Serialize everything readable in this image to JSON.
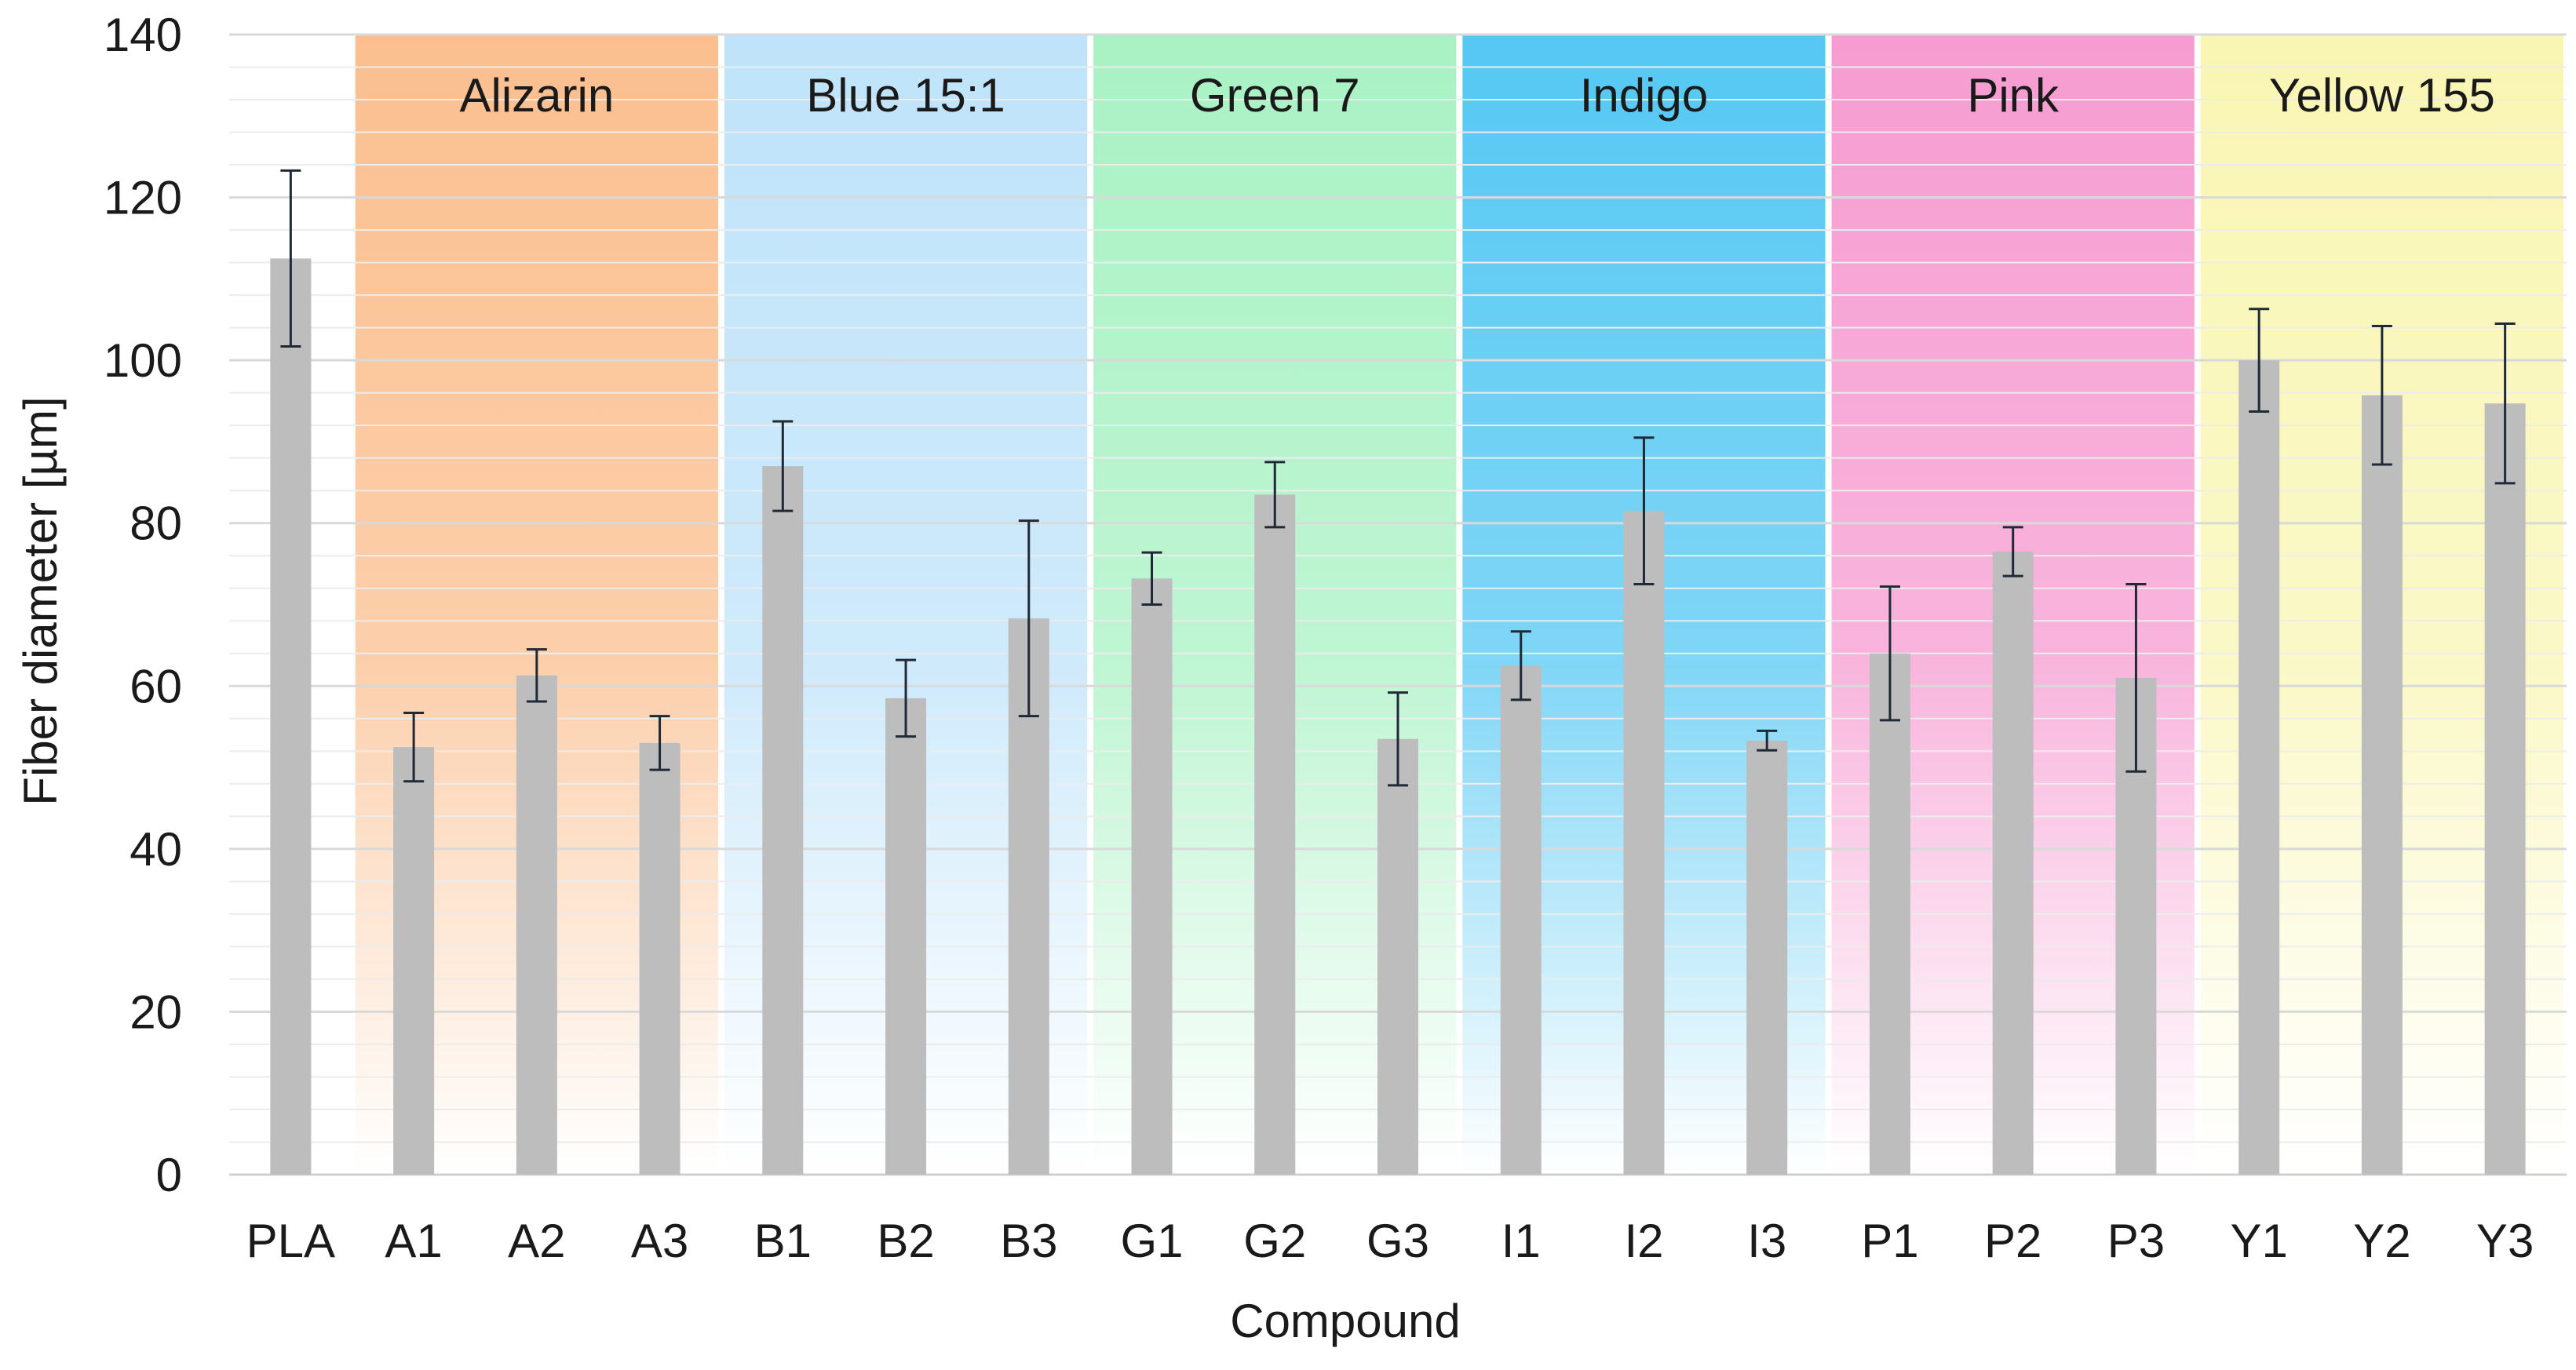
{
  "chart_data": {
    "type": "bar",
    "title": "",
    "xlabel": "Compound",
    "ylabel": "Fiber diameter [µm]",
    "ylim": [
      0,
      140
    ],
    "yticks": [
      0,
      20,
      40,
      60,
      80,
      100,
      120,
      140
    ],
    "grid": true,
    "categories": [
      "PLA",
      "A1",
      "A2",
      "A3",
      "B1",
      "B2",
      "B3",
      "G1",
      "G2",
      "G3",
      "I1",
      "I2",
      "I3",
      "P1",
      "P2",
      "P3",
      "Y1",
      "Y2",
      "Y3"
    ],
    "values": [
      112.5,
      52.5,
      61.3,
      53.0,
      87.0,
      58.5,
      68.3,
      73.2,
      83.5,
      53.5,
      62.5,
      81.5,
      53.3,
      64.0,
      76.5,
      61.0,
      100.0,
      95.7,
      94.7
    ],
    "errors": [
      10.8,
      4.2,
      3.2,
      3.3,
      5.5,
      4.7,
      12.0,
      3.2,
      4.0,
      5.7,
      4.2,
      9.0,
      1.2,
      8.2,
      3.0,
      11.5,
      6.3,
      8.5,
      9.8
    ],
    "groups": [
      {
        "label": "Alizarin",
        "categories": [
          "A1",
          "A2",
          "A3"
        ],
        "color": "#fbbf8f"
      },
      {
        "label": "Blue 15:1",
        "categories": [
          "B1",
          "B2",
          "B3"
        ],
        "color": "#bfe3fa"
      },
      {
        "label": "Green 7",
        "categories": [
          "G1",
          "G2",
          "G3"
        ],
        "color": "#a9f2c4"
      },
      {
        "label": "Indigo",
        "categories": [
          "I1",
          "I2",
          "I3"
        ],
        "color": "#55c8f3"
      },
      {
        "label": "Pink",
        "categories": [
          "P1",
          "P2",
          "P3"
        ],
        "color": "#f69cd1"
      },
      {
        "label": "Yellow 155",
        "categories": [
          "Y1",
          "Y2",
          "Y3"
        ],
        "color": "#f9f6b4"
      }
    ],
    "bar_color": "#bdbdbd",
    "error_bar_color": "#1f2a36",
    "grid_color": "#d9d9d9"
  }
}
